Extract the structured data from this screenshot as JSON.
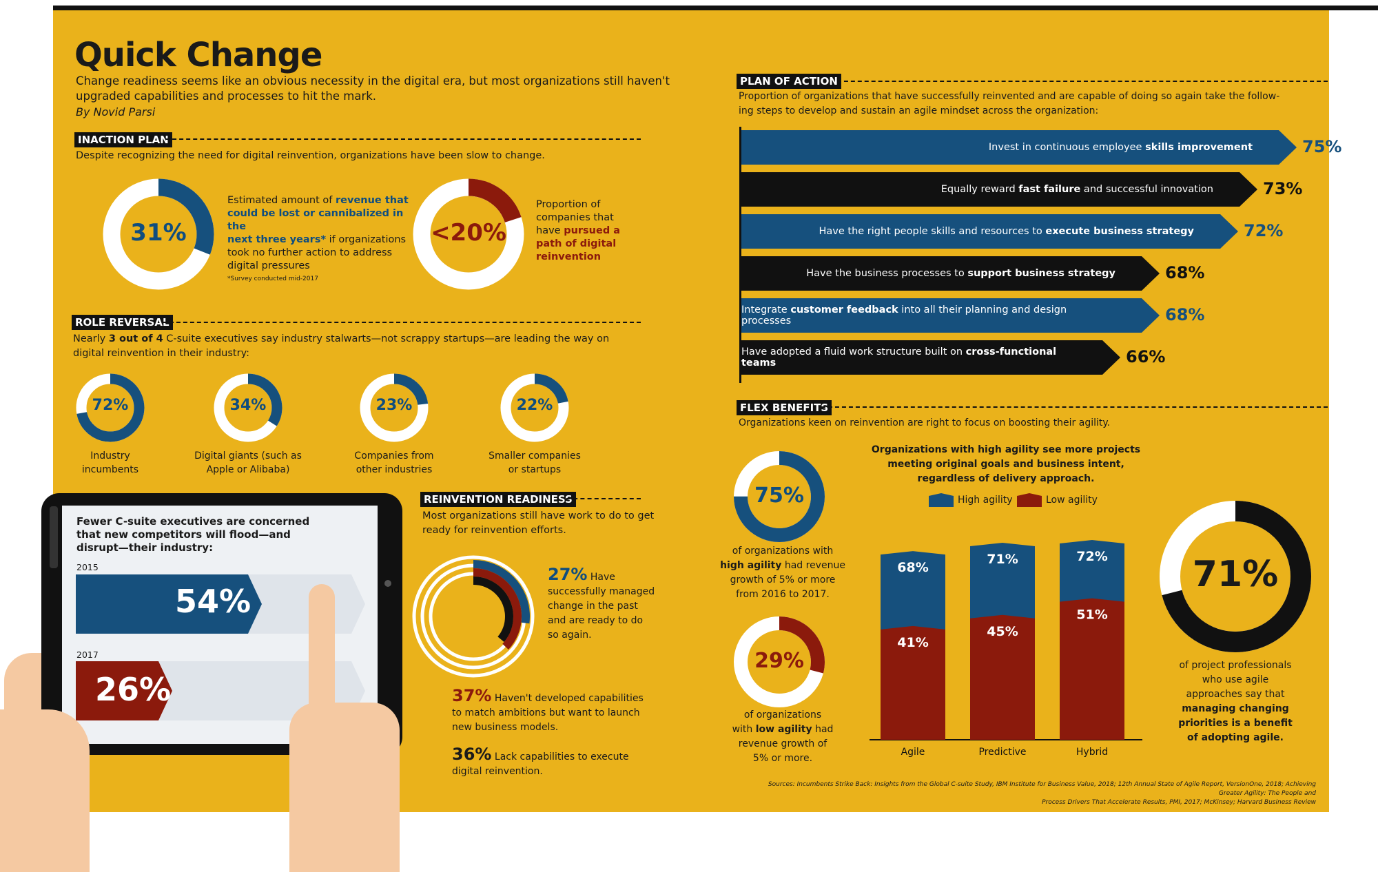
{
  "header": {
    "title": "Quick Change",
    "subtitle_line1": "Change readiness seems like an obvious necessity in the digital era, but most organizations still haven't",
    "subtitle_line2": "upgraded capabilities and processes to hit the mark.",
    "byline": "By Novid Parsi"
  },
  "inaction": {
    "heading": "INACTION PLAN",
    "desc": "Despite recognizing the need for digital reinvention, organizations have been slow to change.",
    "donut1": {
      "value": 31,
      "label": "31%",
      "text_pre": "Estimated amount of ",
      "text_bold1": "revenue that",
      "text_bold2": "could be lost or cannibalized in the",
      "text_bold3": "next three years*",
      "text_post1": " if organizations",
      "text_post2": "took no further action to address",
      "text_post3": "digital pressures"
    },
    "footnote": "*Survey conducted mid-2017",
    "donut2": {
      "value": 20,
      "label": "<20%",
      "t1": "Proportion of",
      "t2": "companies that",
      "t3a": "have ",
      "t3b": "pursued a",
      "t4": "path of digital",
      "t5": "reinvention"
    }
  },
  "role": {
    "heading": "ROLE REVERSAL",
    "desc_pre": "Nearly ",
    "desc_bold": "3 out of 4",
    "desc_post": " C-suite executives say industry stalwarts—not scrappy startups—are leading the way on",
    "desc2": "digital reinvention in their industry:",
    "items": [
      {
        "value": 72,
        "label": "72%",
        "cap1": "Industry",
        "cap2": "incumbents"
      },
      {
        "value": 34,
        "label": "34%",
        "cap1": "Digital giants (such as",
        "cap2": "Apple or Alibaba)"
      },
      {
        "value": 23,
        "label": "23%",
        "cap1": "Companies from",
        "cap2": "other industries"
      },
      {
        "value": 22,
        "label": "22%",
        "cap1": "Smaller companies",
        "cap2": "or startups"
      }
    ]
  },
  "tablet": {
    "title1": "Fewer C-suite executives are concerned",
    "title2": "that new competitors will flood—and",
    "title3": "disrupt—their industry:",
    "y1": "2015",
    "v1": "54%",
    "y2": "2017",
    "v2": "26%"
  },
  "readiness": {
    "heading": "REINVENTION READINESS",
    "desc1": "Most organizations still have work to do to get",
    "desc2": "ready for reinvention efforts.",
    "rings": [
      27,
      37,
      36
    ],
    "i1": {
      "pct": "27%",
      "t1": "Have",
      "t2": "successfully managed",
      "t3": "change in the past",
      "t4": "and are ready to do",
      "t5": "so again."
    },
    "i2": {
      "pct": "37%",
      "t1": "Haven't developed capabilities",
      "t2": "to match ambitions but want to launch",
      "t3": "new business models."
    },
    "i3": {
      "pct": "36%",
      "t1": "Lack capabilities to execute",
      "t2": "digital reinvention."
    }
  },
  "plan": {
    "heading": "PLAN OF ACTION",
    "desc1": "Proportion of organizations that have successfully reinvented and are capable of doing so again take the follow-",
    "desc2": "ing steps to develop and sustain an agile mindset across the organization:",
    "rows": [
      {
        "pre": "Invest in continuous employee ",
        "bold": "skills improvement",
        "post": "",
        "pct": "75%",
        "value": 75
      },
      {
        "pre": "Equally reward ",
        "bold": "fast failure",
        "post": " and successful innovation",
        "pct": "73%",
        "value": 73
      },
      {
        "pre": "Have the right people skills and resources to ",
        "bold": "execute business strategy",
        "post": "",
        "pct": "72%",
        "value": 72
      },
      {
        "pre": "Have the business processes to ",
        "bold": "support business strategy",
        "post": "",
        "pct": "68%",
        "value": 68
      },
      {
        "pre": "Integrate ",
        "bold": "customer feedback",
        "post": " into all their planning and design processes",
        "pct": "68%",
        "value": 68
      },
      {
        "pre": "Have adopted a fluid work structure built on ",
        "bold": "cross-functional teams",
        "post": "",
        "pct": "66%",
        "value": 66
      }
    ]
  },
  "flex": {
    "heading": "FLEX BENEFITS",
    "desc": "Organizations keen on reinvention are right to focus on boosting their agility.",
    "d75": {
      "value": 75,
      "label": "75%",
      "t1": "of organizations with",
      "t2a": "high agility",
      "t2b": " had revenue",
      "t3": "growth of 5% or more",
      "t4": "from 2016 to 2017."
    },
    "d29": {
      "value": 29,
      "label": "29%",
      "t1": "of organizations",
      "t2a": "with ",
      "t2b": "low agility",
      "t2c": " had",
      "t3": "revenue growth of",
      "t4": "5% or more."
    },
    "d71": {
      "value": 71,
      "label": "71%",
      "t1": "of project professionals",
      "t2": "who use agile",
      "t3": "approaches say that",
      "t4": "managing changing",
      "t5": "priorities is a benefit",
      "t6": "of adopting agile."
    }
  },
  "chart_data": {
    "type": "bar",
    "title": "Organizations with high agility see more projects meeting original goals and business intent, regardless of delivery approach.",
    "title1": "Organizations with high agility see more projects",
    "title2": "meeting original goals and business intent,",
    "title3": "regardless of delivery approach.",
    "categories": [
      "Agile",
      "Predictive",
      "Hybrid"
    ],
    "series": [
      {
        "name": "High agility",
        "values": [
          68,
          71,
          72
        ],
        "labels": [
          "68%",
          "71%",
          "72%"
        ],
        "color": "#16507d"
      },
      {
        "name": "Low agility",
        "values": [
          41,
          45,
          51
        ],
        "labels": [
          "41%",
          "45%",
          "51%"
        ],
        "color": "#8b1a0c"
      }
    ],
    "ylim": [
      0,
      72
    ]
  },
  "sources": {
    "line1": "Sources: Incumbents Strike Back: Insights from the Global C-suite Study, IBM Institute for Business Value, 2018; 12th Annual State of Agile Report, VersionOne, 2018; Achieving Greater Agility: The People and",
    "line2": "Process Drivers That Accelerate Results, PMI, 2017; McKinsey; Harvard Business Review"
  },
  "colors": {
    "background": "#eab21b",
    "blue": "#16507d",
    "red": "#8b1a0c",
    "black": "#111111"
  }
}
